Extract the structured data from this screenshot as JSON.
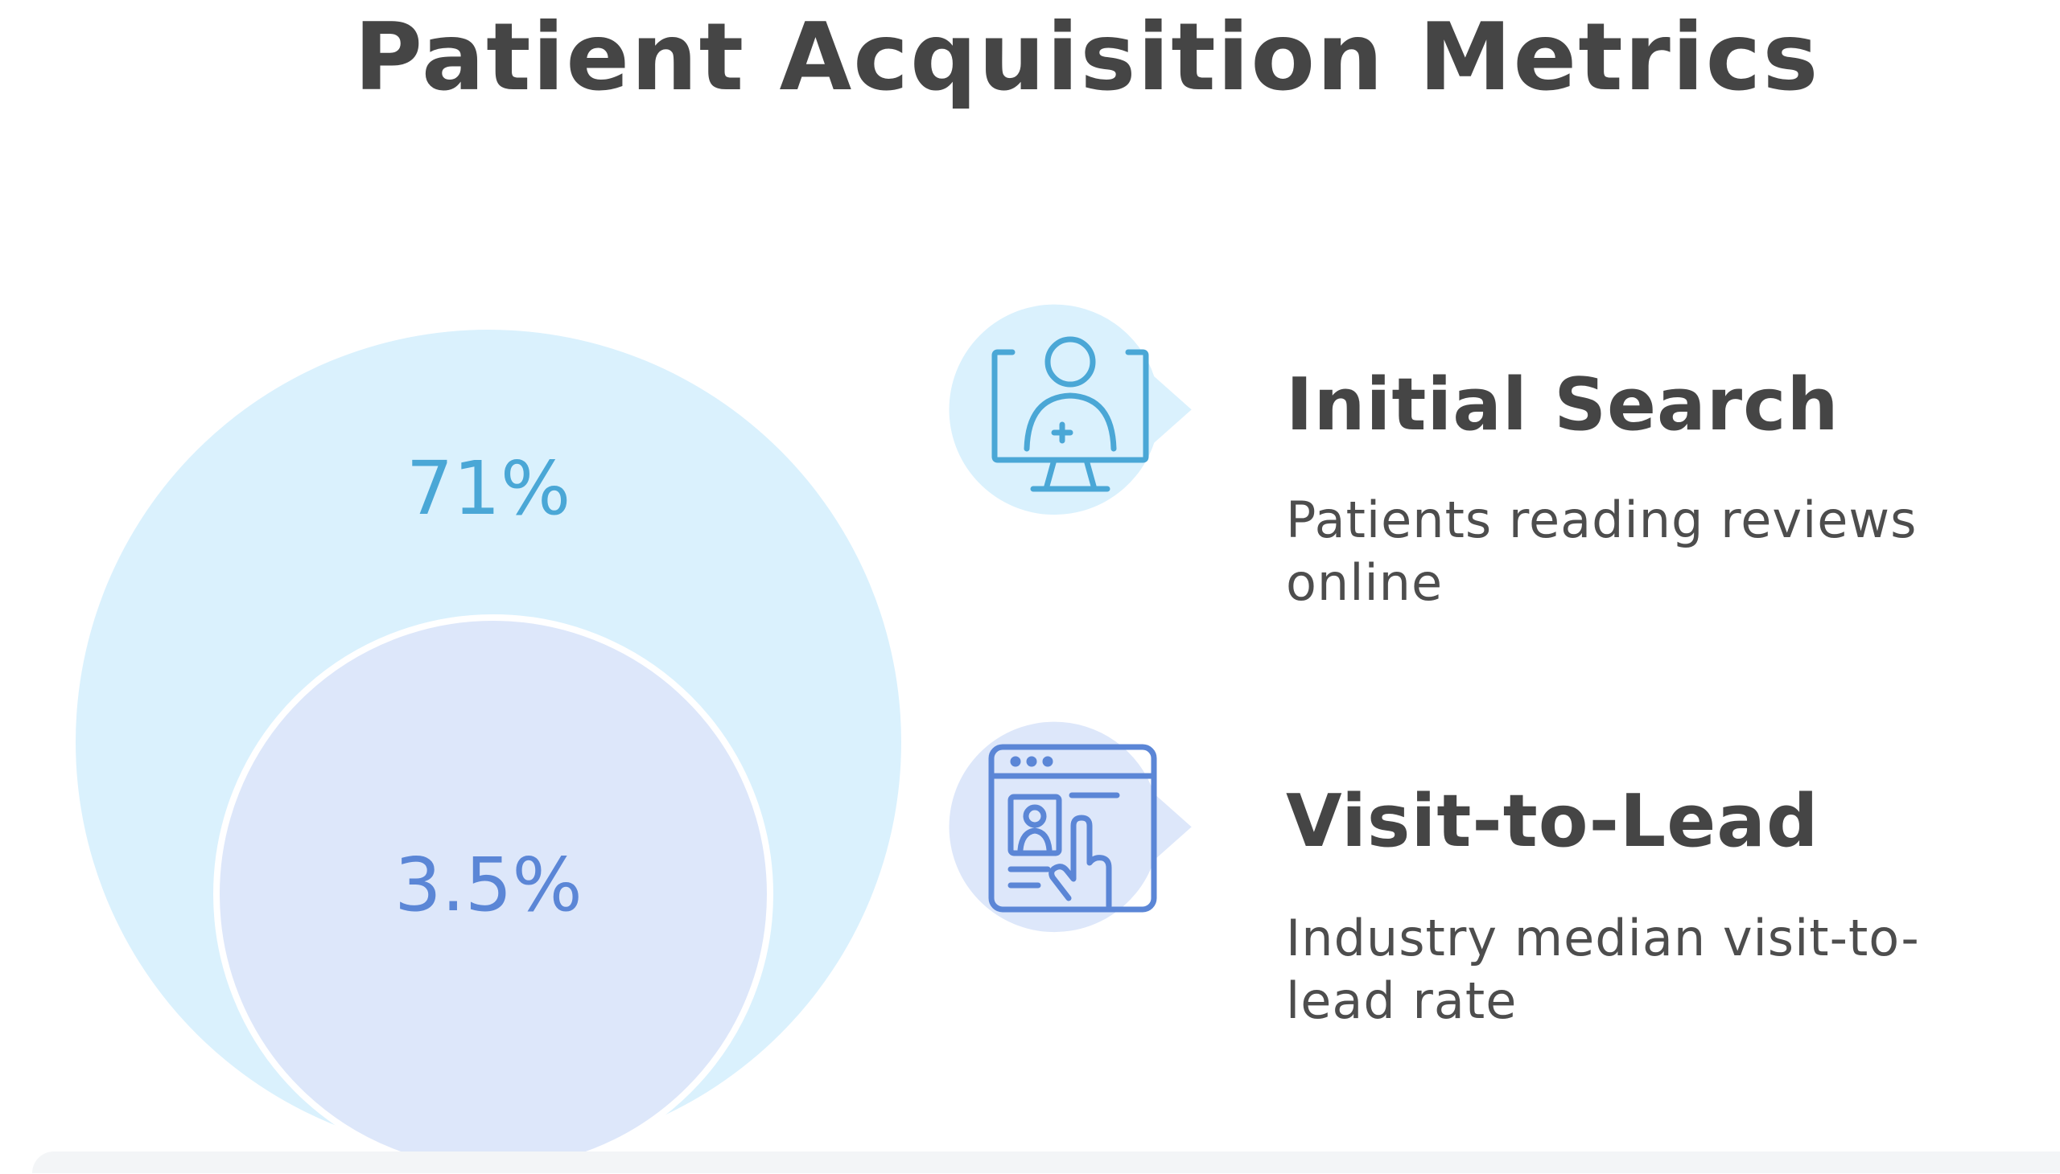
{
  "title": "Patient Acquisition Metrics",
  "circles": {
    "outer": {
      "value_label": "71%",
      "fill": "#daf1fd",
      "text_color": "#4aa7d6"
    },
    "inner": {
      "value_label": "3.5%",
      "fill": "#dde7fa",
      "text_color": "#5b86d6"
    }
  },
  "items": [
    {
      "icon": "monitor-doctor-icon",
      "title": "Initial Search",
      "description": "Patients reading reviews online",
      "bubble_color": "#daf1fd",
      "icon_color": "#4aa7d6"
    },
    {
      "icon": "browser-profile-click-icon",
      "title": "Visit-to-Lead",
      "description": "Industry median visit-to-lead rate",
      "bubble_color": "#dde7fa",
      "icon_color": "#5b86d6"
    }
  ]
}
